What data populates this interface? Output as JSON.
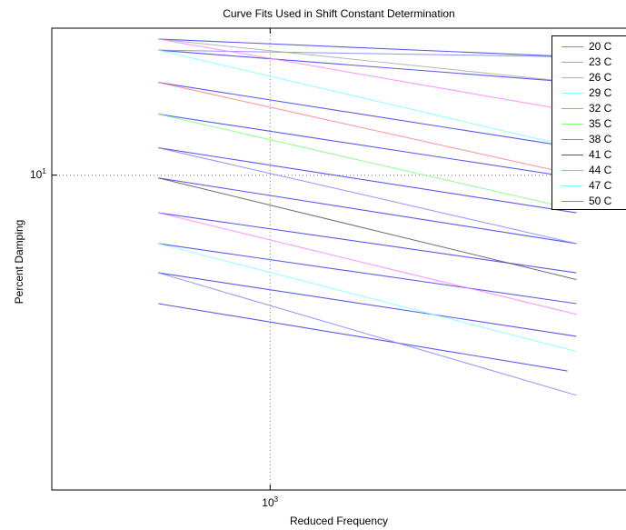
{
  "chart_data": {
    "type": "line",
    "title": "Curve Fits Used in Shift Constant Determination",
    "xlabel": "Reduced Frequency",
    "ylabel": "Percent Damping",
    "xscale": "log",
    "yscale": "log",
    "xlim": [
      570,
      2500
    ],
    "ylim": [
      5.7,
      13.0
    ],
    "xticks": [
      {
        "base": "10",
        "exp": "3",
        "value": 1000
      }
    ],
    "yticks": [
      {
        "base": "10",
        "exp": "1",
        "value": 10
      }
    ],
    "grid": true,
    "legend_position": "top-right",
    "series": [
      {
        "name": "20 C",
        "color": "#7f7fff",
        "x": [
          750,
          2200
        ],
        "y": [
          12.5,
          12.35
        ]
      },
      {
        "name": "23 C",
        "color": "#a8a8a8",
        "x": [
          750,
          2200
        ],
        "y": [
          12.75,
          11.8
        ]
      },
      {
        "name": "26 C",
        "color": "#ff7fff",
        "x": [
          750,
          2200
        ],
        "y": [
          12.75,
          11.2
        ]
      },
      {
        "name": "29 C",
        "color": "#7fffff",
        "x": [
          750,
          2200
        ],
        "y": [
          12.5,
          10.5
        ]
      },
      {
        "name": "32 C",
        "color": "#ff7f7f",
        "x": [
          750,
          2200
        ],
        "y": [
          11.8,
          10.0
        ]
      },
      {
        "name": "35 C",
        "color": "#7fff7f",
        "x": [
          750,
          2200
        ],
        "y": [
          11.15,
          9.4
        ]
      },
      {
        "name": "38 C",
        "color": "#7f7fff",
        "x": [
          750,
          2200
        ],
        "y": [
          10.5,
          8.85
        ]
      },
      {
        "name": "41 C",
        "color": "#555555",
        "x": [
          750,
          2200
        ],
        "y": [
          9.95,
          8.3
        ]
      },
      {
        "name": "44 C",
        "color": "#ff7fff",
        "x": [
          750,
          2200
        ],
        "y": [
          9.35,
          7.8
        ]
      },
      {
        "name": "47 C",
        "color": "#7fffff",
        "x": [
          750,
          2200
        ],
        "y": [
          8.85,
          7.3
        ]
      },
      {
        "name": "50 C",
        "color": "#7f7fff",
        "x": [
          750,
          2200
        ],
        "y": [
          8.4,
          6.75
        ]
      }
    ],
    "drawn_lines": [
      {
        "x": [
          750,
          2200
        ],
        "y": [
          12.75,
          12.35
        ]
      },
      {
        "x": [
          750,
          2200
        ],
        "y": [
          12.5,
          11.8
        ]
      },
      {
        "x": [
          750,
          2200
        ],
        "y": [
          11.8,
          10.5
        ]
      },
      {
        "x": [
          750,
          2200
        ],
        "y": [
          11.15,
          9.95
        ]
      },
      {
        "x": [
          750,
          2200
        ],
        "y": [
          10.5,
          9.35
        ]
      },
      {
        "x": [
          750,
          2200
        ],
        "y": [
          9.95,
          8.85
        ]
      },
      {
        "x": [
          750,
          2200
        ],
        "y": [
          9.35,
          8.4
        ]
      },
      {
        "x": [
          750,
          2200
        ],
        "y": [
          8.85,
          7.95
        ]
      },
      {
        "x": [
          750,
          2200
        ],
        "y": [
          8.4,
          7.5
        ]
      },
      {
        "x": [
          750,
          2150
        ],
        "y": [
          7.95,
          7.05
        ]
      }
    ],
    "line_color": "#5a5af0"
  }
}
